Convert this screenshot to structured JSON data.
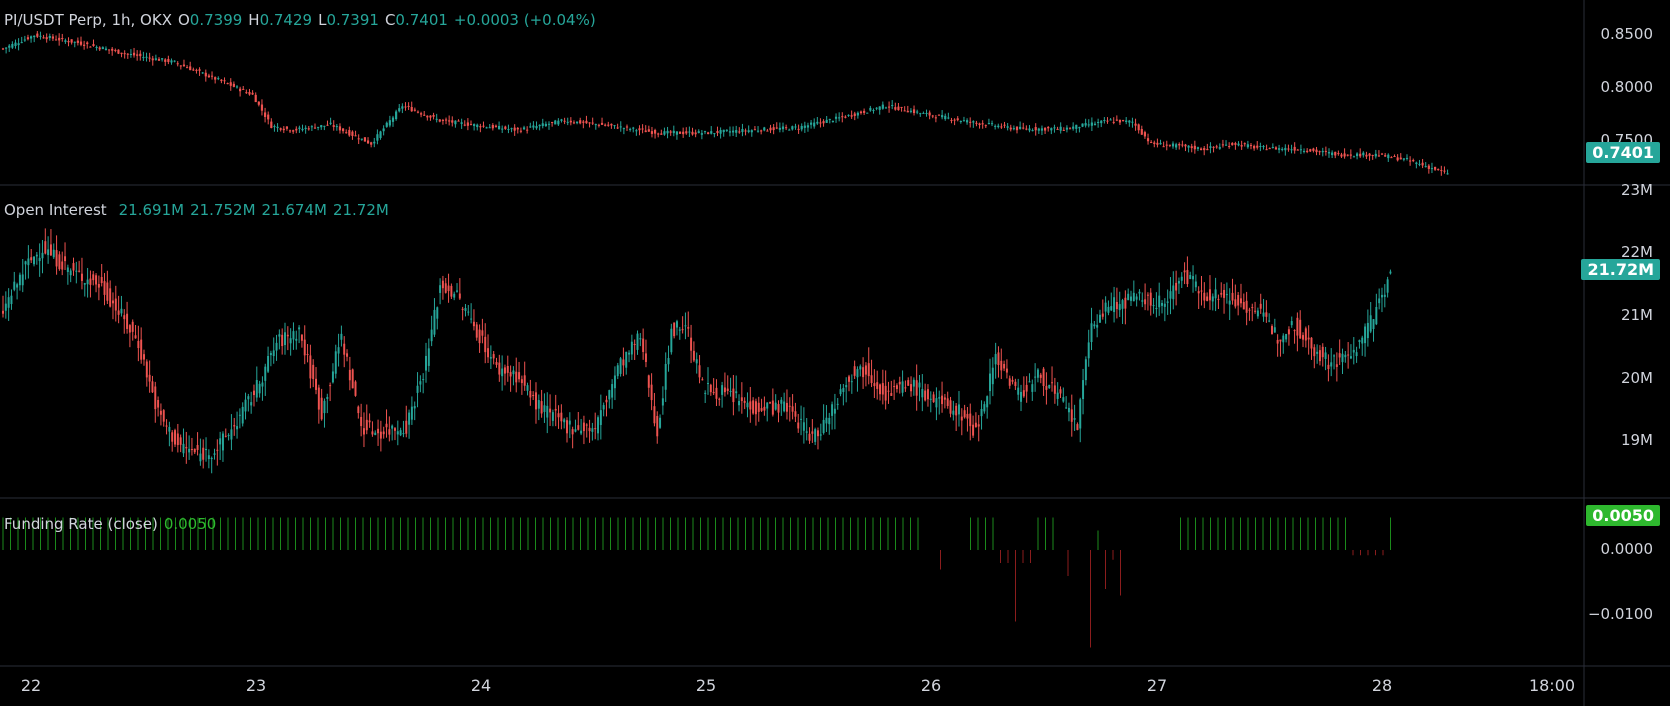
{
  "main": {
    "symbol": "PI/USDT Perp, 1h, OKX",
    "o_label": "O",
    "o": "0.7399",
    "h_label": "H",
    "h": "0.7429",
    "l_label": "L",
    "l": "0.7391",
    "c_label": "C",
    "c": "0.7401",
    "change": "+0.0003 (+0.04%)",
    "last_badge": "0.7401"
  },
  "oi": {
    "title": "Open Interest",
    "v1": "21.691M",
    "v2": "21.752M",
    "v3": "21.674M",
    "v4": "21.72M",
    "last_badge": "21.72M"
  },
  "funding": {
    "title": "Funding Rate (close)",
    "value": "0.0050",
    "last_badge": "0.0050"
  },
  "axes": {
    "price_ticks": [
      "0.8500",
      "0.8000",
      "0.7500"
    ],
    "oi_ticks": [
      "23M",
      "22M",
      "21M",
      "20M",
      "19M"
    ],
    "fr_ticks": [
      "0.0000",
      "−0.0100"
    ],
    "x_ticks": [
      "22",
      "23",
      "24",
      "25",
      "26",
      "27",
      "28",
      "18:00"
    ]
  },
  "colors": {
    "up": "#26a69a",
    "down": "#ef5350",
    "fr_pos": "#1b8a1b",
    "fr_neg": "#8b1d1d",
    "badge_teal": "#26a69a",
    "badge_green": "#2eb82e"
  },
  "chart_data": [
    {
      "type": "candlestick",
      "title": "PI/USDT Perp, 1h, OKX",
      "x": [
        "22",
        "23",
        "24",
        "25",
        "26",
        "27",
        "28",
        "18:00"
      ],
      "ylim": [
        0.733,
        0.862
      ],
      "anchors": [
        [
          0,
          0.832
        ],
        [
          10,
          0.842
        ],
        [
          25,
          0.836
        ],
        [
          40,
          0.828
        ],
        [
          55,
          0.822
        ],
        [
          70,
          0.808
        ],
        [
          80,
          0.798
        ],
        [
          86,
          0.775
        ],
        [
          93,
          0.772
        ],
        [
          105,
          0.776
        ],
        [
          118,
          0.762
        ],
        [
          128,
          0.79
        ],
        [
          140,
          0.779
        ],
        [
          150,
          0.776
        ],
        [
          165,
          0.772
        ],
        [
          180,
          0.779
        ],
        [
          195,
          0.775
        ],
        [
          210,
          0.77
        ],
        [
          225,
          0.77
        ],
        [
          240,
          0.772
        ],
        [
          255,
          0.774
        ],
        [
          270,
          0.782
        ],
        [
          283,
          0.79
        ],
        [
          295,
          0.784
        ],
        [
          310,
          0.778
        ],
        [
          325,
          0.773
        ],
        [
          340,
          0.773
        ],
        [
          355,
          0.779
        ],
        [
          362,
          0.778
        ],
        [
          368,
          0.762
        ],
        [
          378,
          0.76
        ],
        [
          385,
          0.758
        ],
        [
          395,
          0.762
        ],
        [
          402,
          0.759
        ],
        [
          416,
          0.758
        ],
        [
          428,
          0.754
        ],
        [
          440,
          0.754
        ],
        [
          450,
          0.75
        ],
        [
          463,
          0.7401
        ]
      ],
      "last": {
        "o": 0.7399,
        "h": 0.7429,
        "l": 0.7391,
        "c": 0.7401
      }
    },
    {
      "type": "candlestick",
      "title": "Open Interest",
      "ylim": [
        18.2,
        23.0
      ],
      "anchors": [
        [
          0,
          21.1
        ],
        [
          8,
          21.8
        ],
        [
          14,
          22.1
        ],
        [
          25,
          21.7
        ],
        [
          35,
          21.5
        ],
        [
          48,
          20.6
        ],
        [
          55,
          19.5
        ],
        [
          62,
          19.0
        ],
        [
          70,
          18.85
        ],
        [
          76,
          18.95
        ],
        [
          82,
          19.3
        ],
        [
          90,
          19.9
        ],
        [
          97,
          20.6
        ],
        [
          105,
          20.8
        ],
        [
          113,
          19.5
        ],
        [
          120,
          20.7
        ],
        [
          127,
          19.3
        ],
        [
          133,
          19.2
        ],
        [
          143,
          19.3
        ],
        [
          150,
          20.3
        ],
        [
          155,
          21.5
        ],
        [
          160,
          21.4
        ],
        [
          168,
          20.8
        ],
        [
          175,
          20.2
        ],
        [
          182,
          20.1
        ],
        [
          190,
          19.6
        ],
        [
          200,
          19.3
        ],
        [
          210,
          19.25
        ],
        [
          218,
          20.2
        ],
        [
          226,
          20.7
        ],
        [
          232,
          19.2
        ],
        [
          237,
          20.8
        ],
        [
          242,
          20.9
        ],
        [
          248,
          19.9
        ],
        [
          257,
          19.8
        ],
        [
          265,
          19.6
        ],
        [
          278,
          19.6
        ],
        [
          287,
          19.1
        ],
        [
          292,
          19.4
        ],
        [
          300,
          20.1
        ],
        [
          306,
          20.2
        ],
        [
          313,
          19.8
        ],
        [
          322,
          19.95
        ],
        [
          330,
          19.7
        ],
        [
          340,
          19.5
        ],
        [
          345,
          19.2
        ],
        [
          352,
          20.4
        ],
        [
          360,
          19.8
        ],
        [
          368,
          20.1
        ],
        [
          375,
          19.7
        ],
        [
          381,
          19.3
        ],
        [
          386,
          20.9
        ],
        [
          393,
          21.2
        ],
        [
          403,
          21.3
        ],
        [
          412,
          21.2
        ],
        [
          418,
          21.7
        ],
        [
          425,
          21.4
        ],
        [
          435,
          21.3
        ],
        [
          445,
          21.1
        ],
        [
          452,
          20.7
        ],
        [
          458,
          20.9
        ],
        [
          463,
          20.6
        ],
        [
          470,
          20.3
        ],
        [
          478,
          20.4
        ],
        [
          486,
          21.0
        ],
        [
          492,
          21.72
        ]
      ],
      "last": {
        "o": 21.691,
        "h": 21.752,
        "l": 21.674,
        "c": 21.72
      }
    },
    {
      "type": "bar",
      "title": "Funding Rate (close)",
      "ylim": [
        -0.016,
        0.006
      ],
      "last": 0.005
    }
  ]
}
